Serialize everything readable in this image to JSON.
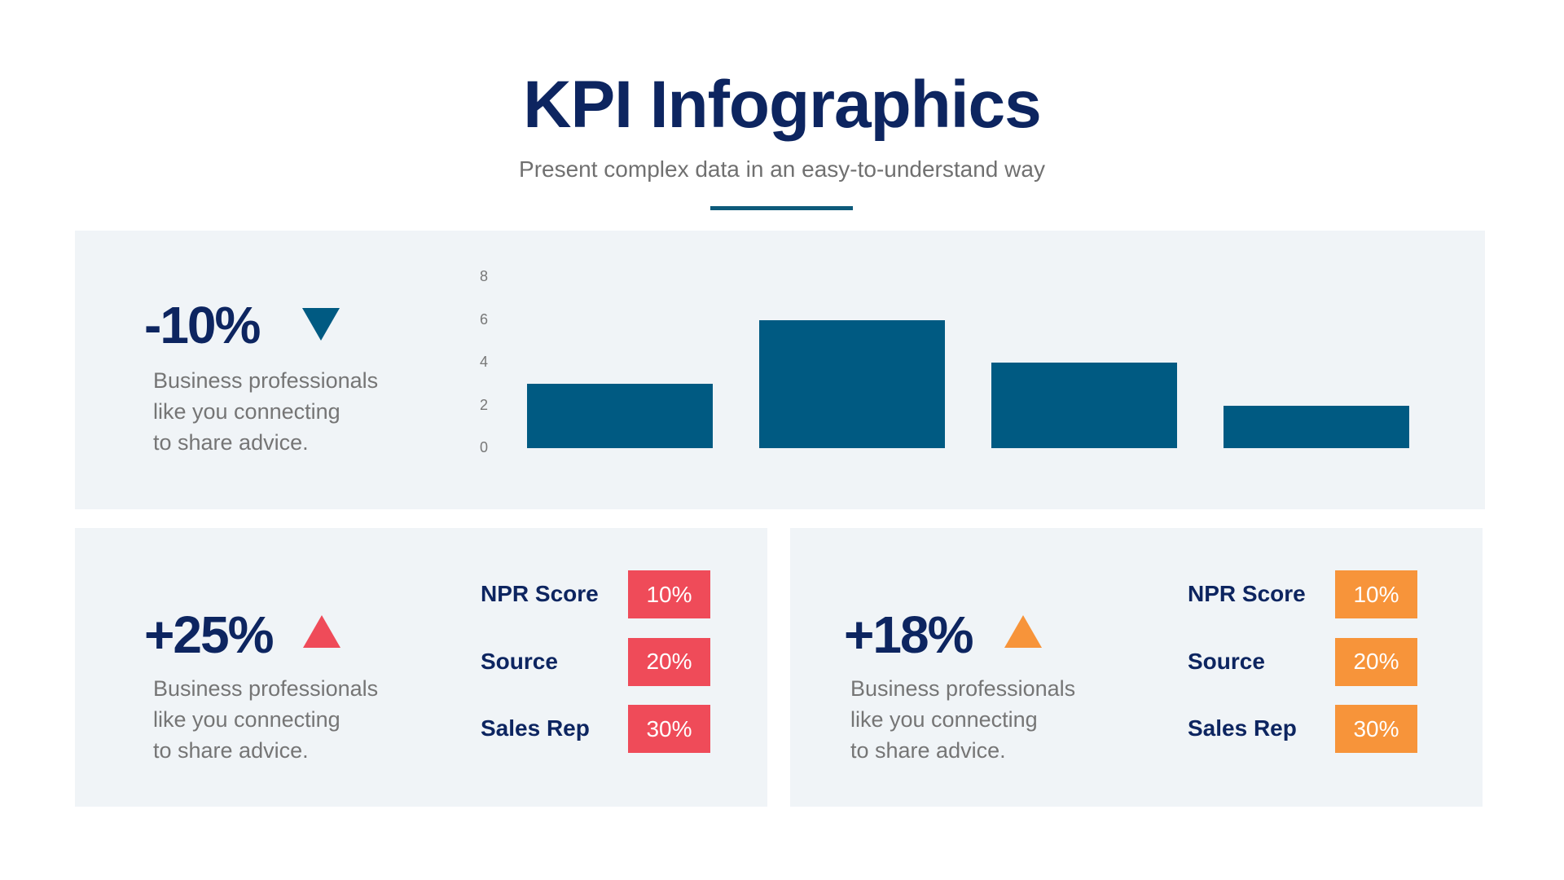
{
  "header": {
    "title": "KPI Infographics",
    "subtitle": "Present complex data in an easy-to-understand way"
  },
  "colors": {
    "navy": "#0d2560",
    "teal": "#005a82",
    "red": "#ef4b59",
    "orange": "#f7943a",
    "panel": "#f0f4f7"
  },
  "top_panel": {
    "value": "-10%",
    "trend_icon": "triangle-down-icon",
    "description": [
      "Business professionals",
      "like you connecting",
      "to share advice."
    ]
  },
  "chart_data": {
    "type": "bar",
    "categories": [
      "",
      "",
      "",
      ""
    ],
    "values": [
      3,
      6,
      4,
      2
    ],
    "ylim": [
      0,
      8
    ],
    "yticks": [
      "0",
      "2",
      "4",
      "6",
      "8"
    ],
    "grid": false,
    "color": "#005a82",
    "title": "",
    "xlabel": "",
    "ylabel": ""
  },
  "left_panel": {
    "value": "+25%",
    "trend_icon": "triangle-up-icon",
    "description": [
      "Business professionals",
      "like you connecting",
      "to share advice."
    ],
    "metrics": [
      {
        "label": "NPR Score",
        "value": "10%"
      },
      {
        "label": "Source",
        "value": "20%"
      },
      {
        "label": "Sales Rep",
        "value": "30%"
      }
    ]
  },
  "right_panel": {
    "value": "+18%",
    "trend_icon": "triangle-up-icon",
    "description": [
      "Business professionals",
      "like you connecting",
      "to share advice."
    ],
    "metrics": [
      {
        "label": "NPR Score",
        "value": "10%"
      },
      {
        "label": "Source",
        "value": "20%"
      },
      {
        "label": "Sales Rep",
        "value": "30%"
      }
    ]
  }
}
